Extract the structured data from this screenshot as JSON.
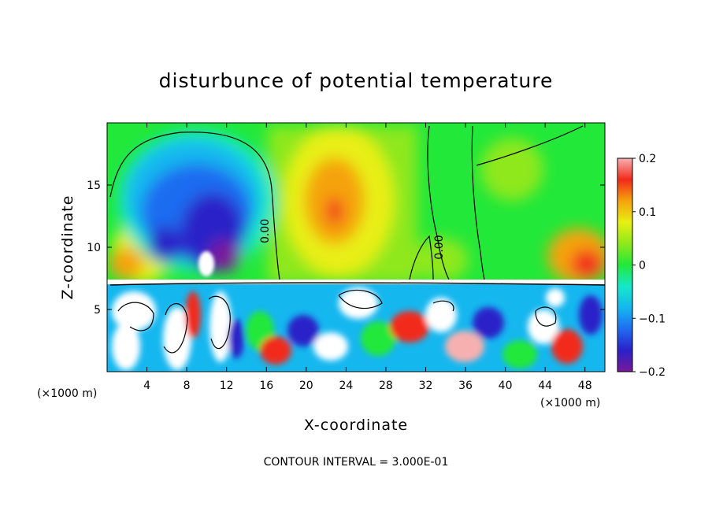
{
  "chart_data": {
    "type": "heatmap",
    "title": "disturbunce of potential temperature",
    "xlabel": "X-coordinate",
    "ylabel": "Z-coordinate",
    "x_unit": "(×1000 m)",
    "x_ticks": [
      4,
      8,
      12,
      16,
      20,
      24,
      28,
      32,
      36,
      40,
      44,
      48
    ],
    "y_ticks": [
      5,
      10,
      15
    ],
    "xlim": [
      0,
      50
    ],
    "ylim": [
      0,
      20
    ],
    "colorbar": {
      "ticks": [
        "0.2",
        "0.1",
        "0",
        "−0.1",
        "−0.2"
      ],
      "tick_values": [
        0.2,
        0.1,
        0,
        -0.1,
        -0.2
      ],
      "range": [
        -0.2,
        0.2
      ]
    },
    "contour_label": "0.00",
    "contour_labels_plotted": [
      {
        "x": 16.2,
        "z": 11.3,
        "text": "0.00"
      },
      {
        "x": 33.7,
        "z": 10.0,
        "text": "0.00"
      }
    ],
    "footer": "CONTOUR INTERVAL = 3.000E-01"
  }
}
